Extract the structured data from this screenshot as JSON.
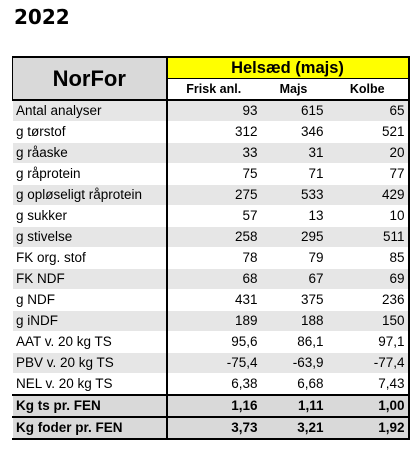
{
  "title": "2022",
  "table": {
    "brand": "NorFor",
    "group_header": "Helsæd (majs)",
    "columns": [
      "Frisk anl.",
      "Majs",
      "Kolbe"
    ],
    "rows": [
      {
        "label": "Antal analyser",
        "values": [
          "93",
          "615",
          "65"
        ]
      },
      {
        "label": "g tørstof",
        "values": [
          "312",
          "346",
          "521"
        ]
      },
      {
        "label": "g råaske",
        "values": [
          "33",
          "31",
          "20"
        ]
      },
      {
        "label": "g råprotein",
        "values": [
          "75",
          "71",
          "77"
        ]
      },
      {
        "label": "g opløseligt råprotein",
        "values": [
          "275",
          "533",
          "429"
        ]
      },
      {
        "label": "g sukker",
        "values": [
          "57",
          "13",
          "10"
        ]
      },
      {
        "label": "g stivelse",
        "values": [
          "258",
          "295",
          "511"
        ]
      },
      {
        "label": "FK org. stof",
        "values": [
          "78",
          "79",
          "85"
        ]
      },
      {
        "label": "FK NDF",
        "values": [
          "68",
          "67",
          "69"
        ]
      },
      {
        "label": "g NDF",
        "values": [
          "431",
          "375",
          "236"
        ]
      },
      {
        "label": "g iNDF",
        "values": [
          "189",
          "188",
          "150"
        ]
      },
      {
        "label": "AAT v. 20 kg TS",
        "values": [
          "95,6",
          "86,1",
          "97,1"
        ]
      },
      {
        "label": "PBV v. 20 kg TS",
        "values": [
          "-75,4",
          "-63,9",
          "-77,4"
        ]
      },
      {
        "label": "NEL v. 20 kg TS",
        "values": [
          "6,38",
          "6,68",
          "7,43"
        ]
      },
      {
        "label": "Kg ts pr. FEN",
        "values": [
          "1,16",
          "1,11",
          "1,00"
        ]
      },
      {
        "label": "Kg foder pr. FEN",
        "values": [
          "3,73",
          "3,21",
          "1,92"
        ]
      }
    ]
  }
}
